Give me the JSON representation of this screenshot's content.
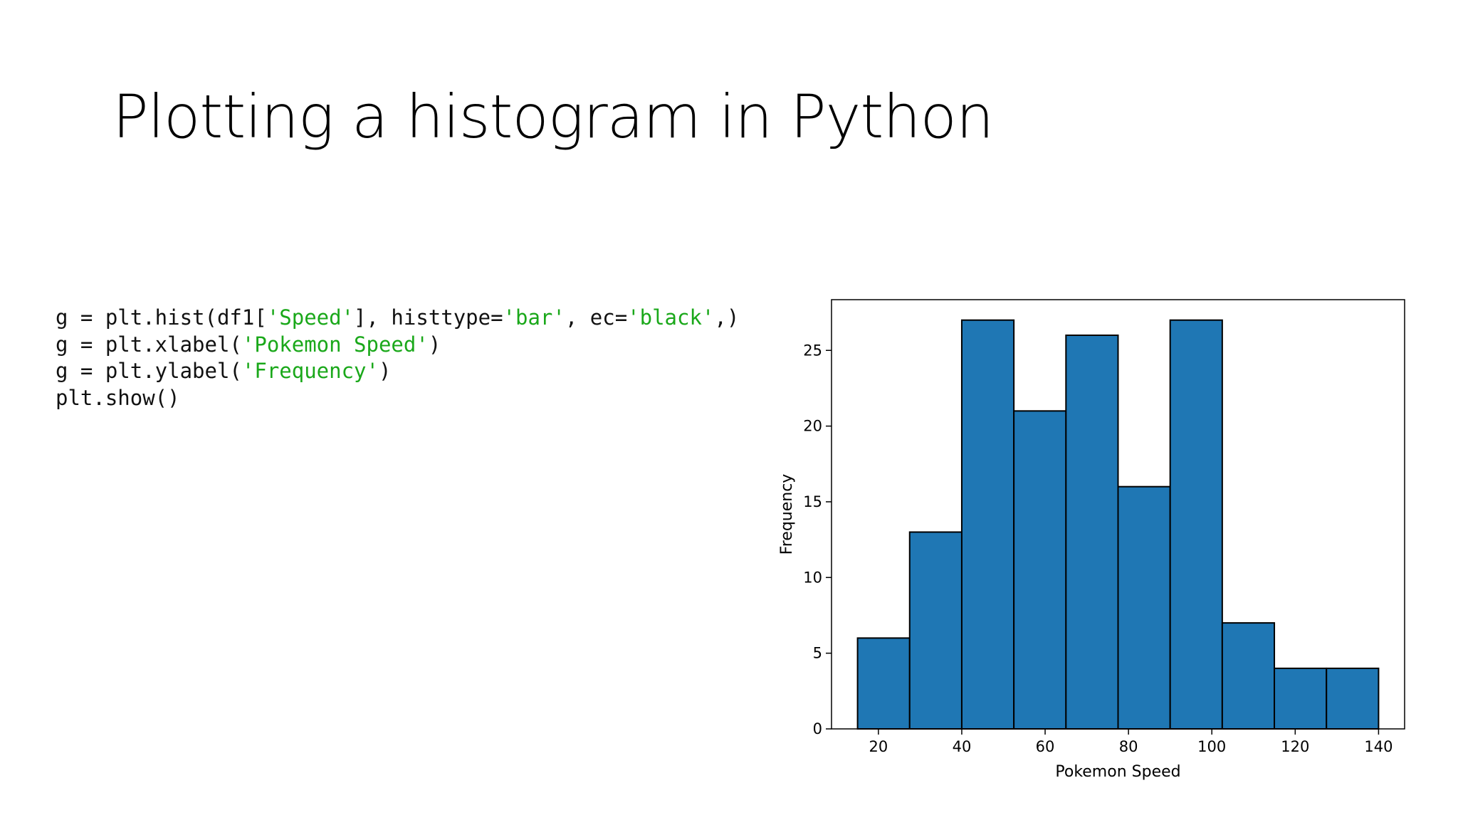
{
  "slide": {
    "title": "Plotting a histogram in Python"
  },
  "code": {
    "lines": [
      [
        {
          "text": "g = plt.hist(df1[",
          "type": "code"
        },
        {
          "text": "'Speed'",
          "type": "string"
        },
        {
          "text": "], histtype=",
          "type": "code"
        },
        {
          "text": "'bar'",
          "type": "string"
        },
        {
          "text": ", ec=",
          "type": "code"
        },
        {
          "text": "'black'",
          "type": "string"
        },
        {
          "text": ",)",
          "type": "code"
        }
      ],
      [
        {
          "text": "g = plt.xlabel(",
          "type": "code"
        },
        {
          "text": "'Pokemon Speed'",
          "type": "string"
        },
        {
          "text": ")",
          "type": "code"
        }
      ],
      [
        {
          "text": "g = plt.ylabel(",
          "type": "code"
        },
        {
          "text": "'Frequency'",
          "type": "string"
        },
        {
          "text": ")",
          "type": "code"
        }
      ],
      [
        {
          "text": "plt.show()",
          "type": "code"
        }
      ]
    ]
  },
  "colors": {
    "bar_fill": "#1f77b4",
    "bar_edge": "#000000",
    "code_string": "#1aa81a",
    "code_text": "#111111"
  },
  "chart_data": {
    "type": "bar",
    "histogram": true,
    "bin_edges": [
      15,
      27.5,
      40,
      52.5,
      65,
      77.5,
      90,
      102.5,
      115,
      127.5,
      140
    ],
    "values": [
      6,
      13,
      27,
      21,
      26,
      16,
      27,
      7,
      4,
      4
    ],
    "xlabel": "Pokemon Speed",
    "ylabel": "Frequency",
    "xlim": [
      8.75,
      146.25
    ],
    "ylim": [
      0,
      28.35
    ],
    "xticks": [
      20,
      40,
      60,
      80,
      100,
      120,
      140
    ],
    "yticks": [
      0,
      5,
      10,
      15,
      20,
      25
    ],
    "grid": false,
    "legend": false
  }
}
